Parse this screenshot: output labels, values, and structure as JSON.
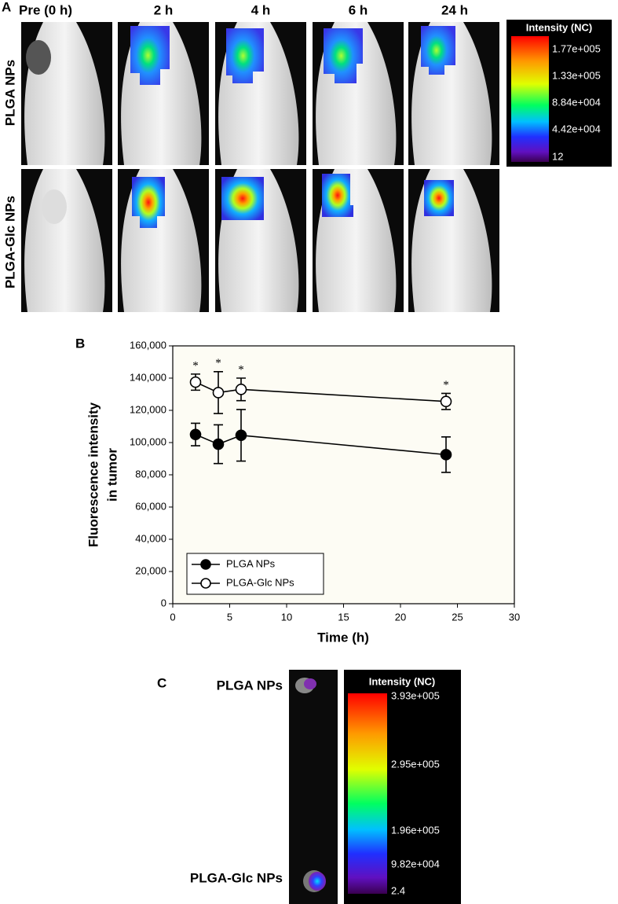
{
  "panel_a": {
    "label": "A",
    "columns": [
      "Pre (0 h)",
      "2 h",
      "4 h",
      "6 h",
      "24 h"
    ],
    "rows": [
      "PLGA NPs",
      "PLGA-Glc NPs"
    ],
    "colorbar": {
      "title": "Intensity (NC)",
      "labels": [
        "1.77e+005",
        "1.33e+005",
        "8.84e+004",
        "4.42e+004",
        "12"
      ]
    }
  },
  "chart_data": {
    "type": "line",
    "label": "B",
    "xlabel": "Time (h)",
    "ylabel": [
      "Fluorescence intensity",
      "in tumor"
    ],
    "xlim": [
      0,
      30
    ],
    "xticks": [
      0,
      5,
      10,
      15,
      20,
      25,
      30
    ],
    "ylim": [
      0,
      160000
    ],
    "yticks": [
      0,
      {
        "value": 20000,
        "label": "20,000"
      },
      {
        "value": 40000,
        "label": "40,000"
      },
      {
        "value": 60000,
        "label": "60,000"
      },
      {
        "value": 80000,
        "label": "80,000"
      },
      {
        "value": 100000,
        "label": "100,000"
      },
      {
        "value": 120000,
        "label": "120,000"
      },
      {
        "value": 140000,
        "label": "140,000"
      },
      {
        "value": 160000,
        "label": "160,000"
      }
    ],
    "x": [
      2,
      4,
      6,
      24
    ],
    "series": [
      {
        "name": "PLGA NPs",
        "color": "#000000",
        "marker_fill": "#000000",
        "values": [
          105000,
          99000,
          104500,
          92500
        ],
        "errors": [
          7000,
          12000,
          16000,
          11000
        ]
      },
      {
        "name": "PLGA-Glc NPs",
        "color": "#000000",
        "marker_fill": "#ffffff",
        "values": [
          137500,
          131000,
          133000,
          125500
        ],
        "errors": [
          5000,
          13000,
          7000,
          5000
        ],
        "annotations": [
          "*",
          "*",
          "*",
          "*"
        ]
      }
    ],
    "legend": "lower left",
    "grid": false
  },
  "panel_c": {
    "label": "C",
    "rows": [
      "PLGA NPs",
      "PLGA-Glc NPs"
    ],
    "colorbar": {
      "title": "Intensity (NC)",
      "labels": [
        "3.93e+005",
        "2.95e+005",
        "1.96e+005",
        "9.82e+004",
        "2.4"
      ]
    }
  }
}
